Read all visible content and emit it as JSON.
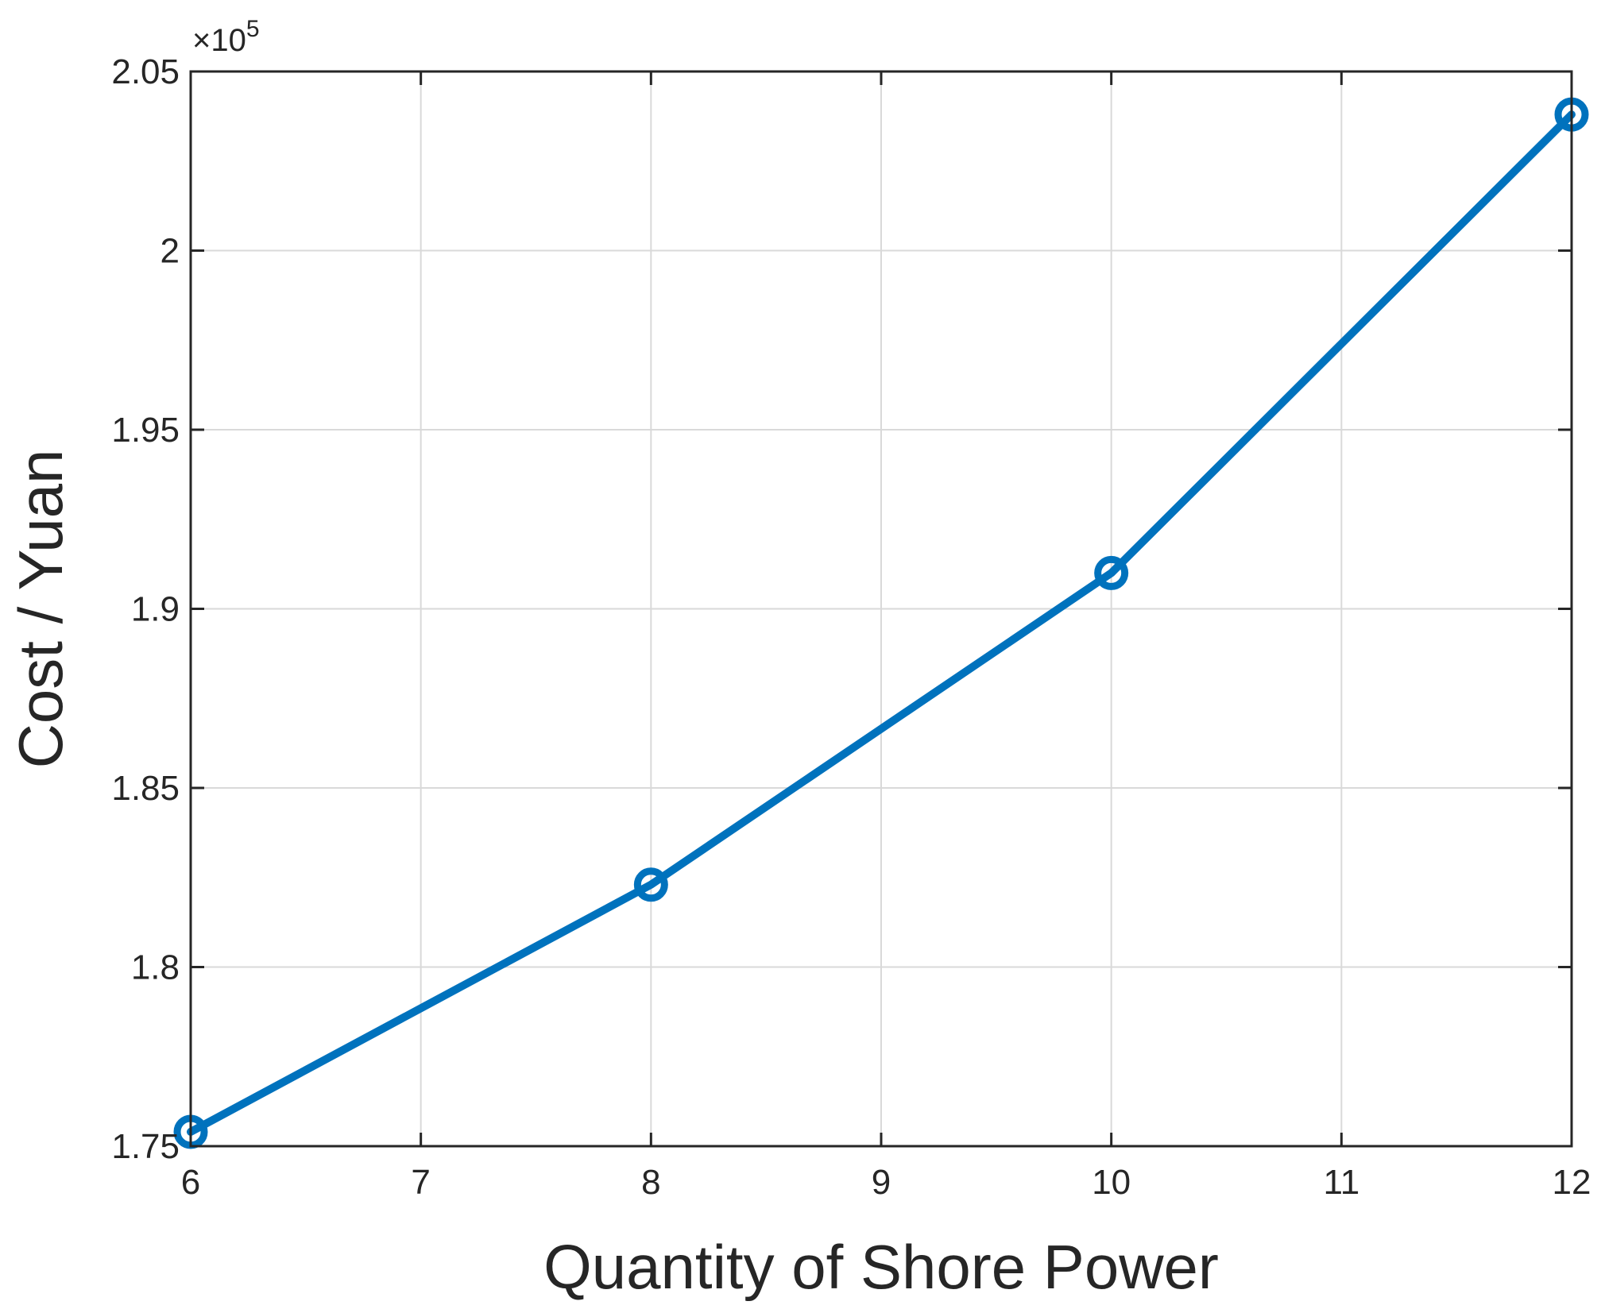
{
  "chart_data": {
    "type": "line",
    "title": "",
    "xlabel": "Quantity of Shore Power",
    "ylabel": "Cost / Yuan",
    "exponent_label": "×10",
    "exponent_power": "5",
    "xlim": [
      6,
      12
    ],
    "ylim": [
      1.75,
      2.05
    ],
    "xticks": [
      6,
      7,
      8,
      9,
      10,
      11,
      12
    ],
    "yticks": [
      1.75,
      1.8,
      1.85,
      1.9,
      1.95,
      2,
      2.05
    ],
    "xtick_labels": [
      "6",
      "7",
      "8",
      "9",
      "10",
      "11",
      "12"
    ],
    "ytick_labels": [
      "1.75",
      "1.8",
      "1.85",
      "1.9",
      "1.95",
      "2",
      "2.05"
    ],
    "grid": true,
    "series": [
      {
        "color": "#0072BD",
        "marker": "circle",
        "x": [
          6,
          8,
          10,
          12
        ],
        "y": [
          1.754,
          1.823,
          1.91,
          2.038
        ]
      }
    ]
  }
}
